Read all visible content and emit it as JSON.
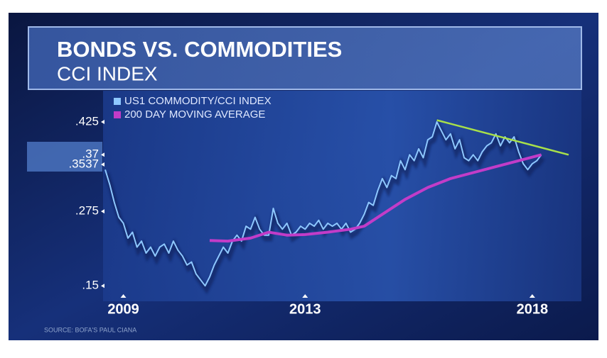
{
  "chart_data": {
    "type": "line",
    "title": "BONDS VS. COMMODITIES",
    "subtitle": "CCI INDEX",
    "source": "SOURCE: BOFA'S PAUL CIANA",
    "xlim": [
      2008.6,
      2018.8
    ],
    "xticks": [
      2009,
      2013,
      2018
    ],
    "ylim": [
      0.13,
      0.475
    ],
    "yticks": [
      {
        "value": 0.15,
        "label": ".15"
      },
      {
        "value": 0.275,
        "label": ".275"
      },
      {
        "value": 0.3537,
        "label": ".3537"
      },
      {
        "value": 0.37,
        "label": ".37"
      },
      {
        "value": 0.425,
        "label": ".425"
      }
    ],
    "series": [
      {
        "name": "US1 COMMODITY/CCI INDEX",
        "color": "#8ec8ff",
        "x": [
          2008.6,
          2008.7,
          2008.8,
          2008.9,
          2009.0,
          2009.1,
          2009.2,
          2009.3,
          2009.4,
          2009.5,
          2009.6,
          2009.7,
          2009.8,
          2009.9,
          2010.0,
          2010.1,
          2010.2,
          2010.3,
          2010.4,
          2010.5,
          2010.6,
          2010.7,
          2010.8,
          2010.9,
          2011.0,
          2011.1,
          2011.2,
          2011.3,
          2011.4,
          2011.5,
          2011.6,
          2011.7,
          2011.8,
          2011.9,
          2012.0,
          2012.1,
          2012.2,
          2012.3,
          2012.4,
          2012.5,
          2012.6,
          2012.7,
          2012.8,
          2012.9,
          2013.0,
          2013.1,
          2013.2,
          2013.3,
          2013.4,
          2013.5,
          2013.6,
          2013.7,
          2013.8,
          2013.9,
          2014.0,
          2014.1,
          2014.2,
          2014.3,
          2014.4,
          2014.5,
          2014.6,
          2014.7,
          2014.8,
          2014.9,
          2015.0,
          2015.1,
          2015.2,
          2015.3,
          2015.4,
          2015.5,
          2015.6,
          2015.7,
          2015.8,
          2015.9,
          2016.0,
          2016.1,
          2016.2,
          2016.3,
          2016.4,
          2016.5,
          2016.6,
          2016.7,
          2016.8,
          2016.9,
          2017.0,
          2017.1,
          2017.2,
          2017.3,
          2017.4,
          2017.5,
          2017.6,
          2017.7,
          2017.8,
          2017.9,
          2018.0,
          2018.1,
          2018.2
        ],
        "values": [
          0.345,
          0.32,
          0.29,
          0.265,
          0.255,
          0.23,
          0.24,
          0.215,
          0.225,
          0.205,
          0.215,
          0.2,
          0.215,
          0.22,
          0.205,
          0.225,
          0.21,
          0.2,
          0.185,
          0.19,
          0.17,
          0.16,
          0.15,
          0.165,
          0.185,
          0.2,
          0.215,
          0.205,
          0.225,
          0.235,
          0.225,
          0.25,
          0.245,
          0.265,
          0.245,
          0.235,
          0.235,
          0.28,
          0.255,
          0.245,
          0.255,
          0.235,
          0.24,
          0.25,
          0.245,
          0.255,
          0.25,
          0.26,
          0.245,
          0.255,
          0.25,
          0.255,
          0.245,
          0.255,
          0.24,
          0.245,
          0.255,
          0.27,
          0.29,
          0.285,
          0.31,
          0.33,
          0.315,
          0.335,
          0.33,
          0.36,
          0.345,
          0.37,
          0.36,
          0.38,
          0.365,
          0.395,
          0.4,
          0.425,
          0.41,
          0.395,
          0.405,
          0.38,
          0.395,
          0.365,
          0.36,
          0.37,
          0.36,
          0.375,
          0.385,
          0.39,
          0.405,
          0.385,
          0.4,
          0.39,
          0.4,
          0.375,
          0.355,
          0.345,
          0.355,
          0.36,
          0.37
        ]
      },
      {
        "name": "200 DAY MOVING AVERAGE",
        "color": "#c23cc8",
        "x": [
          2010.9,
          2011.3,
          2011.8,
          2012.2,
          2012.6,
          2013.0,
          2013.5,
          2014.0,
          2014.3,
          2014.7,
          2015.2,
          2015.7,
          2016.2,
          2016.7,
          2017.2,
          2017.7,
          2018.2
        ],
        "values": [
          0.226,
          0.225,
          0.23,
          0.24,
          0.235,
          0.236,
          0.24,
          0.245,
          0.25,
          0.27,
          0.295,
          0.315,
          0.33,
          0.34,
          0.35,
          0.36,
          0.37
        ]
      }
    ],
    "trendline": {
      "color": "#a8e04a",
      "x": [
        2015.9,
        2018.8
      ],
      "values": [
        0.428,
        0.37
      ]
    }
  }
}
